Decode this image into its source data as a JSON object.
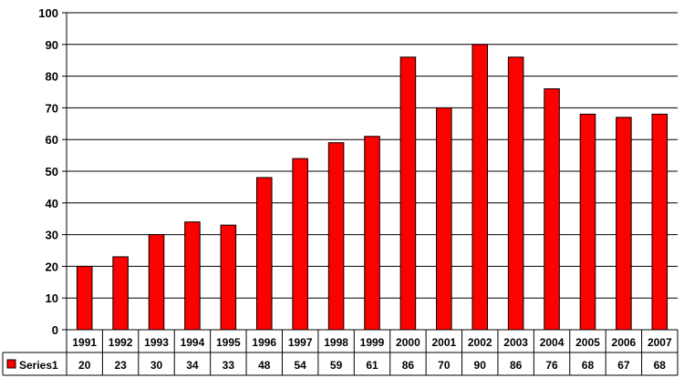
{
  "chart_data": {
    "type": "bar",
    "categories": [
      "1991",
      "1992",
      "1993",
      "1994",
      "1995",
      "1996",
      "1997",
      "1998",
      "1999",
      "2000",
      "2001",
      "2002",
      "2003",
      "2004",
      "2005",
      "2006",
      "2007"
    ],
    "series": [
      {
        "name": "Series1",
        "values": [
          20,
          23,
          30,
          34,
          33,
          48,
          54,
          59,
          61,
          86,
          70,
          90,
          86,
          76,
          68,
          67,
          68
        ]
      }
    ],
    "title": "",
    "xlabel": "",
    "ylabel": "",
    "ylim": [
      0,
      100
    ],
    "yticks": [
      0,
      10,
      20,
      30,
      40,
      50,
      60,
      70,
      80,
      90,
      100
    ],
    "grid": true,
    "legend": "data-table-left",
    "colors": {
      "bar": "#ff0000",
      "bar_edge": "#000000",
      "grid": "#000000"
    }
  }
}
